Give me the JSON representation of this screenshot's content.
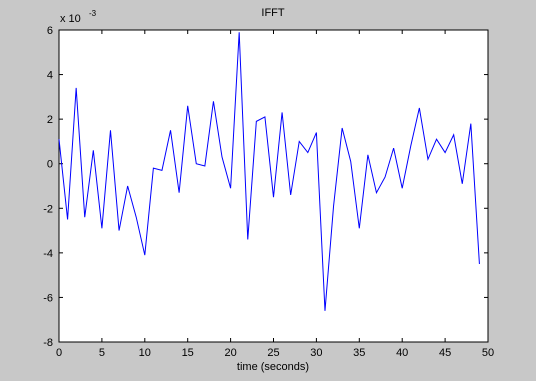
{
  "chart_data": {
    "type": "line",
    "title": "IFFT",
    "xlabel": "time (seconds)",
    "ylabel": "",
    "y_exponent_label": "x 10",
    "y_exponent_power": "-3",
    "xlim": [
      0,
      50
    ],
    "ylim": [
      -8,
      6
    ],
    "x_ticks": [
      0,
      5,
      10,
      15,
      20,
      25,
      30,
      35,
      40,
      45,
      50
    ],
    "y_ticks": [
      -8,
      -6,
      -4,
      -2,
      0,
      2,
      4,
      6
    ],
    "x_tick_labels": [
      "0",
      "5",
      "10",
      "15",
      "20",
      "25",
      "30",
      "35",
      "40",
      "45",
      "50"
    ],
    "y_tick_labels": [
      "-8",
      "-6",
      "-4",
      "-2",
      "0",
      "2",
      "4",
      "6"
    ],
    "grid": false,
    "line_color": "#0000ff",
    "series": [
      {
        "x": [
          0,
          1,
          2,
          3,
          4,
          5,
          6,
          7,
          8,
          9,
          10,
          11,
          12,
          13,
          14,
          15,
          16,
          17,
          18,
          19,
          20,
          21,
          22,
          23,
          24,
          25,
          26,
          27,
          28,
          29,
          30,
          31,
          32,
          33,
          34,
          35,
          36,
          37,
          38,
          39,
          40,
          41,
          42,
          43,
          44,
          45,
          46,
          47,
          48,
          49
        ],
        "values": [
          1.1,
          -2.5,
          3.4,
          -2.4,
          0.6,
          -2.9,
          1.5,
          -3.0,
          -1.0,
          -2.4,
          -4.1,
          -0.2,
          -0.3,
          1.5,
          -1.3,
          2.6,
          0.0,
          -0.1,
          2.8,
          0.3,
          -1.1,
          5.9,
          -3.4,
          1.9,
          2.1,
          -1.5,
          2.3,
          -1.4,
          1.0,
          0.5,
          1.4,
          -6.6,
          -1.9,
          1.6,
          0.1,
          -2.9,
          0.4,
          -1.3,
          -0.6,
          0.7,
          -1.1,
          0.8,
          2.5,
          0.2,
          1.1,
          0.5,
          1.3,
          -0.9,
          1.8,
          -4.5
        ]
      }
    ]
  }
}
